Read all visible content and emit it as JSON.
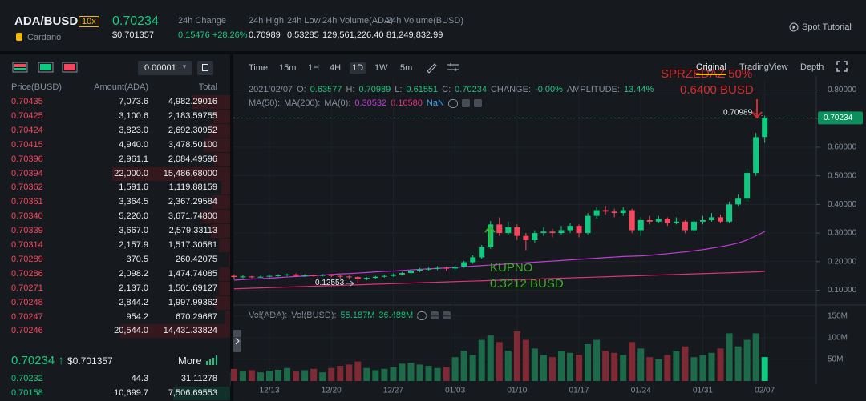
{
  "header": {
    "pair": "ADA/BUSD",
    "leverage": "10x",
    "usd_price": "$0.701357",
    "coin": "Cardano",
    "stats": [
      {
        "label": "24h Change",
        "value": "0.15476 +28.26%"
      },
      {
        "label": "24h High",
        "value": "0.70989"
      },
      {
        "label": "24h Low",
        "value": "0.53285"
      },
      {
        "label": "24h Volume(ADA)",
        "value": "129,561,226.40"
      },
      {
        "label": "24h Volume(BUSD)",
        "value": "81,249,832.99"
      }
    ],
    "tutorial": "Spot Tutorial"
  },
  "orderbook": {
    "precision": "0.00001",
    "columns": [
      "Price(BUSD)",
      "Amount(ADA)",
      "Total"
    ],
    "asks": [
      [
        "0.70435",
        "7,073.6",
        "4,982.29016"
      ],
      [
        "0.70425",
        "3,100.6",
        "2,183.59755"
      ],
      [
        "0.70424",
        "3,823.0",
        "2,692.30952"
      ],
      [
        "0.70415",
        "4,940.0",
        "3,478.50100"
      ],
      [
        "0.70396",
        "2,961.1",
        "2,084.49596"
      ],
      [
        "0.70394",
        "22,000.0",
        "15,486.68000"
      ],
      [
        "0.70362",
        "1,591.6",
        "1,119.88159"
      ],
      [
        "0.70361",
        "3,364.5",
        "2,367.29584"
      ],
      [
        "0.70340",
        "5,220.0",
        "3,671.74800"
      ],
      [
        "0.70339",
        "3,667.0",
        "2,579.33113"
      ],
      [
        "0.70314",
        "2,157.9",
        "1,517.30581"
      ],
      [
        "0.70289",
        "370.5",
        "260.42075"
      ],
      [
        "0.70286",
        "2,098.2",
        "1,474.74085"
      ],
      [
        "0.70271",
        "2,137.0",
        "1,501.69127"
      ],
      [
        "0.70248",
        "2,844.2",
        "1,997.99362"
      ],
      [
        "0.70247",
        "954.2",
        "670.29687"
      ],
      [
        "0.70246",
        "20,544.0",
        "14,431.33824"
      ]
    ],
    "last_arrow": "↑",
    "more": "More",
    "bids": [
      [
        "0.70232",
        "44.3",
        "31.11278"
      ],
      [
        "0.70158",
        "10,699.7",
        "7,506.69553"
      ]
    ]
  },
  "toolbar": {
    "intervals": [
      "Time",
      "15m",
      "1H",
      "4H",
      "1D",
      "1W",
      "5m"
    ],
    "views": [
      "Original",
      "TradingView",
      "Depth"
    ]
  },
  "chart_data": {
    "type": "candlestick",
    "info": {
      "date": "2021/02/07",
      "o": "O:",
      "h": "H:",
      "l": "L:",
      "c": "C:",
      "change_label": "CHANGE:",
      "change": "-0.00%",
      "amp_label": "AMPLITUDE:",
      "amp": "13.44%"
    },
    "categories": [
      null,
      null,
      null,
      null,
      "12/13",
      null,
      null,
      null,
      null,
      null,
      null,
      "12/20",
      null,
      null,
      null,
      null,
      null,
      null,
      "12/27",
      null,
      null,
      null,
      null,
      null,
      null,
      "01/03",
      null,
      null,
      null,
      null,
      null,
      null,
      "01/10",
      null,
      null,
      null,
      null,
      null,
      null,
      "01/17",
      null,
      null,
      null,
      null,
      null,
      null,
      "01/24",
      null,
      null,
      null,
      null,
      null,
      null,
      "01/31",
      null,
      null,
      null,
      null,
      null,
      null,
      "02/07"
    ],
    "open": [
      0.15,
      0.146,
      0.148,
      0.145,
      0.147,
      0.15,
      0.152,
      0.155,
      0.15,
      0.152,
      0.151,
      0.153,
      0.15,
      0.148,
      0.146,
      0.14,
      0.143,
      0.147,
      0.15,
      0.155,
      0.16,
      0.168,
      0.172,
      0.175,
      0.178,
      0.176,
      0.182,
      0.198,
      0.215,
      0.25,
      0.33,
      0.3,
      0.32,
      0.29,
      0.275,
      0.3,
      0.305,
      0.3,
      0.31,
      0.325,
      0.3,
      0.36,
      0.38,
      0.375,
      0.37,
      0.38,
      0.31,
      0.345,
      0.34,
      0.35,
      0.335,
      0.34,
      0.31,
      0.34,
      0.345,
      0.355,
      0.34,
      0.4,
      0.42,
      0.51,
      0.63577
    ],
    "high": [
      0.155,
      0.152,
      0.15,
      0.151,
      0.154,
      0.156,
      0.158,
      0.159,
      0.156,
      0.155,
      0.157,
      0.156,
      0.153,
      0.151,
      0.149,
      0.146,
      0.15,
      0.153,
      0.158,
      0.164,
      0.172,
      0.178,
      0.181,
      0.184,
      0.182,
      0.186,
      0.203,
      0.222,
      0.258,
      0.342,
      0.355,
      0.34,
      0.33,
      0.3,
      0.31,
      0.32,
      0.315,
      0.325,
      0.335,
      0.33,
      0.37,
      0.39,
      0.395,
      0.385,
      0.39,
      0.385,
      0.355,
      0.36,
      0.36,
      0.355,
      0.355,
      0.345,
      0.35,
      0.36,
      0.37,
      0.365,
      0.41,
      0.435,
      0.525,
      0.65,
      0.70989
    ],
    "low": [
      0.14,
      0.142,
      0.141,
      0.143,
      0.144,
      0.147,
      0.149,
      0.146,
      0.147,
      0.147,
      0.148,
      0.146,
      0.14,
      0.138,
      0.12553,
      0.135,
      0.14,
      0.144,
      0.147,
      0.151,
      0.156,
      0.163,
      0.168,
      0.17,
      0.168,
      0.17,
      0.178,
      0.192,
      0.21,
      0.245,
      0.29,
      0.295,
      0.275,
      0.24,
      0.265,
      0.29,
      0.285,
      0.295,
      0.3,
      0.285,
      0.295,
      0.35,
      0.365,
      0.355,
      0.36,
      0.3,
      0.29,
      0.33,
      0.335,
      0.325,
      0.33,
      0.3,
      0.305,
      0.33,
      0.34,
      0.335,
      0.335,
      0.395,
      0.41,
      0.5,
      0.61551
    ],
    "close": [
      0.146,
      0.148,
      0.145,
      0.147,
      0.15,
      0.152,
      0.155,
      0.15,
      0.152,
      0.151,
      0.153,
      0.15,
      0.148,
      0.146,
      0.14,
      0.143,
      0.147,
      0.15,
      0.155,
      0.16,
      0.168,
      0.172,
      0.175,
      0.178,
      0.176,
      0.182,
      0.198,
      0.215,
      0.25,
      0.33,
      0.3,
      0.32,
      0.29,
      0.275,
      0.3,
      0.305,
      0.3,
      0.31,
      0.325,
      0.3,
      0.36,
      0.38,
      0.375,
      0.37,
      0.38,
      0.31,
      0.345,
      0.34,
      0.35,
      0.335,
      0.34,
      0.31,
      0.34,
      0.345,
      0.355,
      0.34,
      0.4,
      0.42,
      0.51,
      0.635,
      0.70234
    ],
    "up_color": "#0ecb81",
    "down_color": "#f6465d",
    "ylim": [
      0.065,
      0.835
    ],
    "yticks": [
      {
        "value": 0.1,
        "label": "0.10000"
      },
      {
        "value": 0.2,
        "label": "0.20000"
      },
      {
        "value": 0.3,
        "label": "0.30000"
      },
      {
        "value": 0.4,
        "label": "0.40000"
      },
      {
        "value": 0.5,
        "label": "0.50000"
      },
      {
        "value": 0.6,
        "label": "0.60000"
      },
      {
        "value": 0.7,
        "label": "0.70000"
      },
      {
        "value": 0.8,
        "label": "0.80000"
      }
    ],
    "grid": true,
    "series": [
      {
        "name": "MA(50):",
        "color": "#c43ad8",
        "legend_value": "0.30532",
        "values": [
          0.135,
          0.137,
          0.139,
          0.14,
          0.142,
          0.144,
          0.146,
          0.148,
          0.149,
          0.151,
          0.153,
          0.155,
          0.157,
          0.158,
          0.16,
          0.162,
          0.164,
          0.166,
          0.167,
          0.169,
          0.171,
          0.173,
          0.175,
          0.176,
          0.178,
          0.18,
          0.182,
          0.184,
          0.186,
          0.188,
          0.19,
          0.192,
          0.194,
          0.196,
          0.198,
          0.2,
          0.202,
          0.204,
          0.206,
          0.208,
          0.21,
          0.212,
          0.214,
          0.216,
          0.218,
          0.219,
          0.22,
          0.222,
          0.225,
          0.228,
          0.231,
          0.234,
          0.238,
          0.242,
          0.247,
          0.252,
          0.258,
          0.265,
          0.276,
          0.29,
          0.30532
        ]
      },
      {
        "name": "MA(200):",
        "color": "#e0307c",
        "legend_value": "0.16580",
        "values": [
          0.105,
          0.106,
          0.107,
          0.108,
          0.109,
          0.11,
          0.111,
          0.112,
          0.113,
          0.114,
          0.115,
          0.116,
          0.117,
          0.118,
          0.119,
          0.12,
          0.121,
          0.122,
          0.123,
          0.124,
          0.125,
          0.126,
          0.127,
          0.128,
          0.129,
          0.13,
          0.131,
          0.132,
          0.133,
          0.134,
          0.135,
          0.136,
          0.137,
          0.138,
          0.139,
          0.14,
          0.141,
          0.142,
          0.143,
          0.144,
          0.145,
          0.146,
          0.147,
          0.148,
          0.149,
          0.15,
          0.151,
          0.152,
          0.153,
          0.154,
          0.155,
          0.156,
          0.157,
          0.158,
          0.159,
          0.16,
          0.161,
          0.162,
          0.163,
          0.164,
          0.1658
        ]
      },
      {
        "name": "MA(0):",
        "legend_value": "NaN"
      }
    ],
    "volume": {
      "legend": [
        "Vol(ADA):",
        "Vol(BUSD):",
        "55.187M",
        "36.488M"
      ],
      "up_color": "#1d6a4a",
      "down_color": "#7d2a35",
      "ylim": [
        0,
        168
      ],
      "yticks": [
        {
          "value": 50,
          "label": "50M"
        },
        {
          "value": 100,
          "label": "100M"
        },
        {
          "value": 150,
          "label": "150M"
        }
      ],
      "values": [
        28,
        22,
        25,
        20,
        24,
        26,
        30,
        22,
        25,
        28,
        20,
        30,
        35,
        38,
        45,
        30,
        25,
        28,
        32,
        40,
        42,
        38,
        35,
        30,
        32,
        55,
        70,
        60,
        95,
        105,
        90,
        70,
        115,
        95,
        75,
        60,
        55,
        70,
        65,
        60,
        85,
        95,
        70,
        65,
        60,
        90,
        75,
        55,
        50,
        60,
        70,
        80,
        55,
        60,
        65,
        75,
        110,
        80,
        95,
        110,
        55.187
      ]
    },
    "annotations": {
      "sell": [
        "SPRZEDAZ 50%",
        "0.6400 BUSD"
      ],
      "buy": [
        "KUPNO",
        "0.3212 BUSD"
      ]
    }
  }
}
